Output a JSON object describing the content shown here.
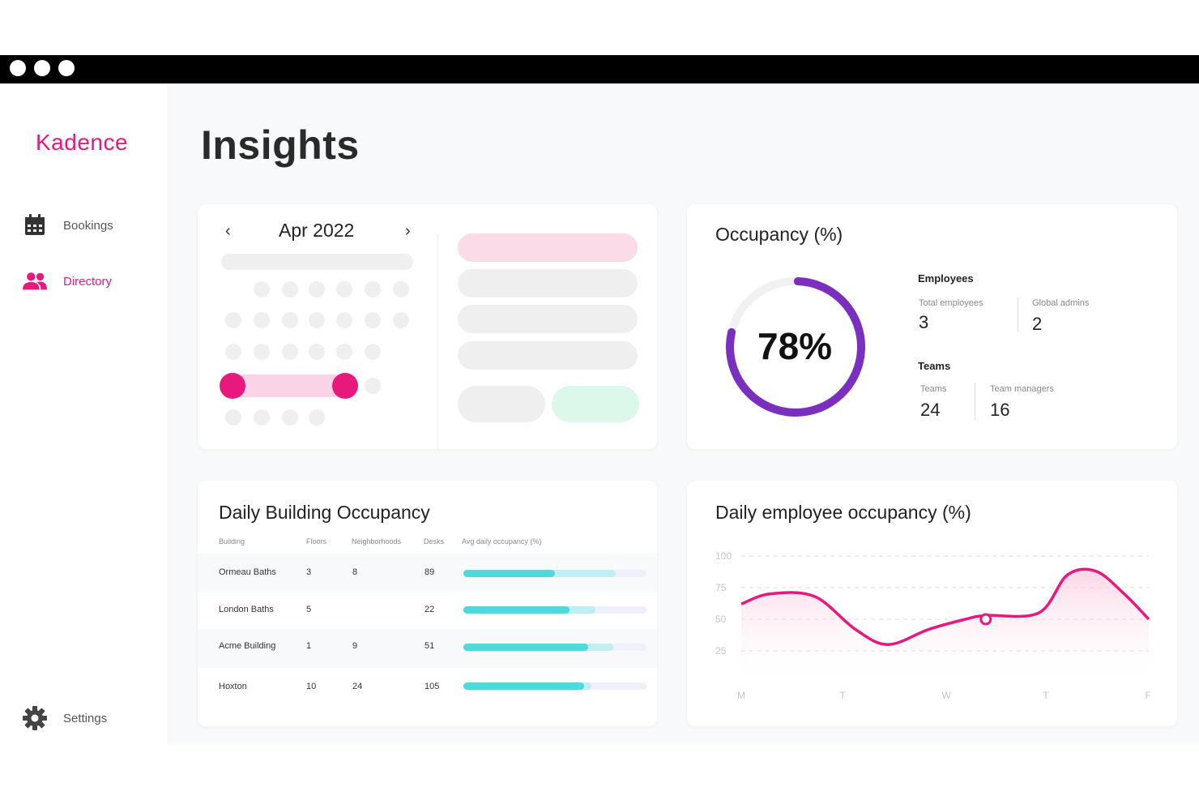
{
  "app": {
    "brand": "Kadence",
    "brand_color": "#e8197d"
  },
  "window": {
    "controls": [
      "dot",
      "dot",
      "dot"
    ]
  },
  "sidebar": {
    "items": [
      {
        "label": "Bookings",
        "icon": "calendar-icon",
        "active": false
      },
      {
        "label": "Directory",
        "icon": "people-icon",
        "active": true
      }
    ],
    "footer": {
      "label": "Settings",
      "icon": "gear-icon"
    }
  },
  "page": {
    "title": "Insights"
  },
  "calendar": {
    "month": "Apr 2022",
    "prev": "‹",
    "next": "›"
  },
  "occupancy": {
    "title": "Occupancy (%)",
    "percent": 78,
    "percent_label": "78%",
    "ring_color": "#7b2fbf",
    "employees": {
      "heading": "Employees",
      "total_label": "Total employees",
      "total_value": "3",
      "admins_label": "Global admins",
      "admins_value": "2"
    },
    "teams": {
      "heading": "Teams",
      "teams_label": "Teams",
      "teams_value": "24",
      "managers_label": "Team managers",
      "managers_value": "16"
    }
  },
  "building_table": {
    "title": "Daily Building Occupancy",
    "columns": [
      "Building",
      "Floors",
      "Neighborhoods",
      "Desks",
      "Avg daily occupancy (%)"
    ],
    "rows": [
      {
        "building": "Ormeau Baths",
        "floors": "3",
        "neighborhoods": "8",
        "desks": "89",
        "occupancy": 0.5,
        "secondary": 0.83
      },
      {
        "building": "London Baths",
        "floors": "5",
        "neighborhoods": "",
        "desks": "22",
        "occupancy": 0.58,
        "secondary": 0.72
      },
      {
        "building": "Acme Building",
        "floors": "1",
        "neighborhoods": "9",
        "desks": "51",
        "occupancy": 0.68,
        "secondary": 0.82
      },
      {
        "building": "Hoxton",
        "floors": "10",
        "neighborhoods": "24",
        "desks": "105",
        "occupancy": 0.66,
        "secondary": 0.7
      }
    ]
  },
  "employee_chart": {
    "title": "Daily employee occupancy (%)",
    "chart_data": {
      "type": "line",
      "x": [
        "M",
        "T",
        "W",
        "T",
        "F"
      ],
      "y_ticks": [
        "100",
        "75",
        "50",
        "25"
      ],
      "ylim": [
        0,
        100
      ],
      "series": [
        {
          "values": [
            [
              0.0,
              62
            ],
            [
              0.35,
              70
            ],
            [
              0.9,
              68
            ],
            [
              1.4,
              42
            ],
            [
              1.8,
              30
            ],
            [
              2.3,
              42
            ],
            [
              2.75,
              50
            ],
            [
              3.0,
              53
            ],
            [
              3.65,
              55
            ],
            [
              4.0,
              85
            ],
            [
              4.35,
              88
            ],
            [
              4.7,
              70
            ],
            [
              5.0,
              50
            ]
          ]
        }
      ],
      "highlight_point": [
        3.0,
        50
      ],
      "color": "#e8197d",
      "grid": true
    }
  }
}
